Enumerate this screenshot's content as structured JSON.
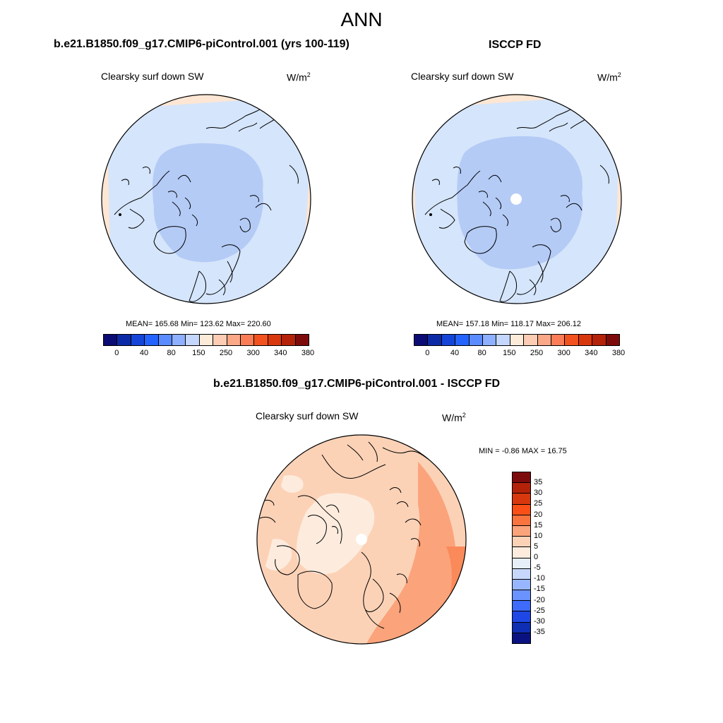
{
  "page": {
    "title": "ANN"
  },
  "panels": [
    {
      "title": "b.e21.B1850.f09_g17.CMIP6-piControl.001 (yrs 100-119)",
      "variable": "Clearsky surf down SW",
      "units_base": "W/m",
      "units_exp": "2",
      "stats": "MEAN= 165.68  Min= 123.62  Max= 220.60"
    },
    {
      "title": "ISCCP FD",
      "variable": "Clearsky surf down SW",
      "units_base": "W/m",
      "units_exp": "2",
      "stats": "MEAN= 157.18  Min= 118.17  Max= 206.12"
    },
    {
      "title": "b.e21.B1850.f09_g17.CMIP6-piControl.001 - ISCCP FD",
      "variable": "Clearsky surf down SW",
      "units_base": "W/m",
      "units_exp": "2",
      "stats": "MIN =  -0.86 MAX =  16.75"
    }
  ],
  "abs_colorbar": {
    "colors": [
      "#0b0b74",
      "#0d2aa6",
      "#1545d8",
      "#2563ff",
      "#5a8bff",
      "#8fb0ff",
      "#c4d6fb",
      "#fdebd9",
      "#fccdb4",
      "#fba889",
      "#fa7d57",
      "#f2521f",
      "#d9370e",
      "#b4220a",
      "#7e0b0b"
    ],
    "tick_labels": [
      "0",
      "40",
      "80",
      "150",
      "250",
      "300",
      "340",
      "380"
    ]
  },
  "diff_colorbar": {
    "colors": [
      "#7e0b0b",
      "#b4220a",
      "#d9370e",
      "#fa5018",
      "#fa7440",
      "#fba37b",
      "#fcd2b7",
      "#fdecde",
      "#e6eef8",
      "#c7d7fb",
      "#98b6ff",
      "#6b93ff",
      "#3e6bfa",
      "#1e47e6",
      "#0e2eb3",
      "#0a1282"
    ],
    "tick_labels": [
      "35",
      "30",
      "25",
      "20",
      "15",
      "10",
      "5",
      "0",
      "-5",
      "-10",
      "-15",
      "-20",
      "-25",
      "-30",
      "-35"
    ]
  },
  "colors": {
    "background": "#ffffff",
    "coastline": "#000000",
    "missing_data": "#ffffff"
  }
}
